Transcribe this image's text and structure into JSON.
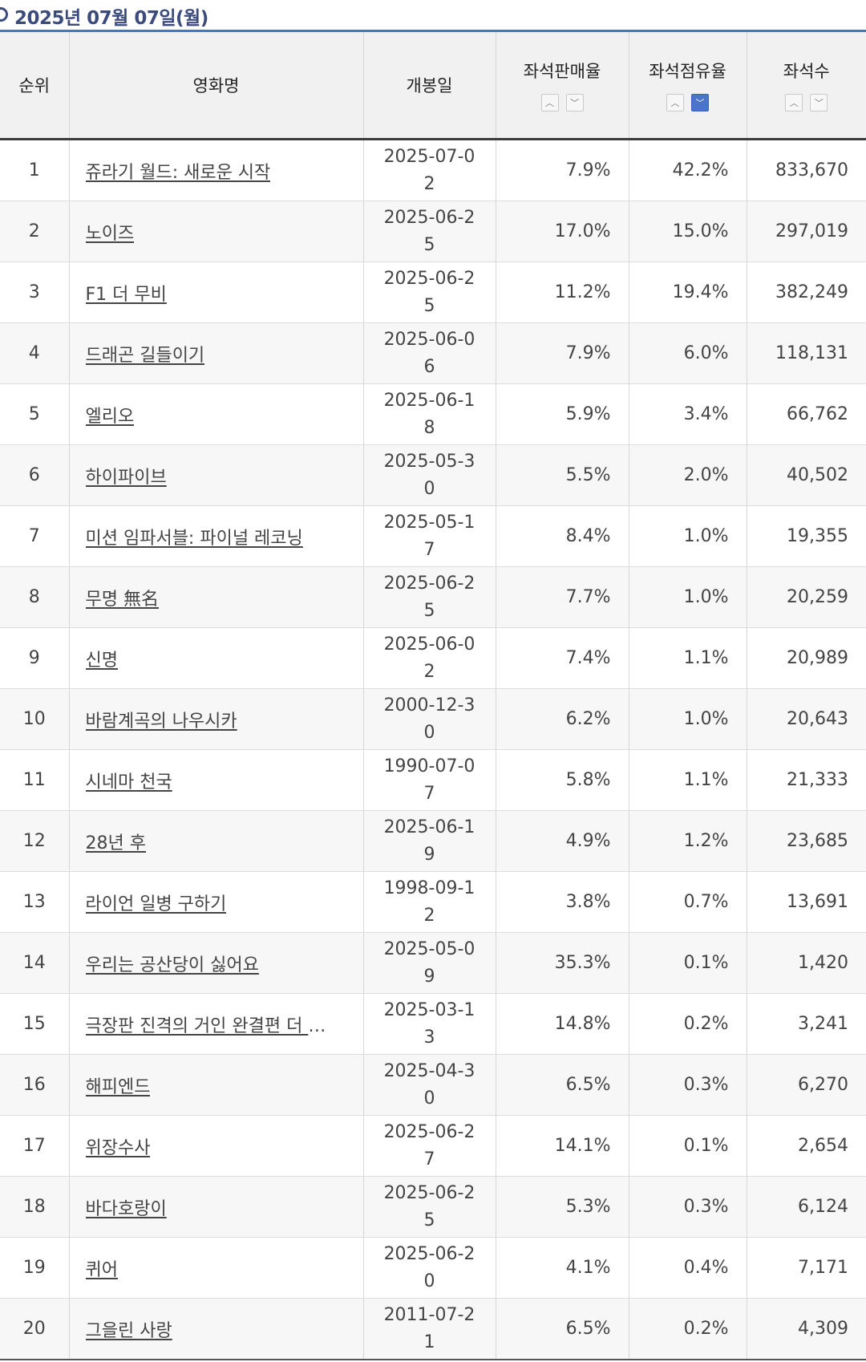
{
  "heading": {
    "date": "2025년 07월 07일(월)"
  },
  "columns": {
    "rank": "순위",
    "title": "영화명",
    "release": "개봉일",
    "sales_rate": "좌석판매율",
    "seat_share": "좌석점유율",
    "seats": "좌석수"
  },
  "sort_glyphs": {
    "up": "︿",
    "down": "﹀"
  },
  "colors": {
    "accent": "#4a74c9",
    "heading": "#3b4b7c"
  },
  "rows": [
    {
      "rank": "1",
      "title": "쥬라기 월드: 새로운 시작",
      "release": "2025-07-02",
      "sales": "7.9%",
      "share": "42.2%",
      "seats": "833,670"
    },
    {
      "rank": "2",
      "title": "노이즈",
      "release": "2025-06-25",
      "sales": "17.0%",
      "share": "15.0%",
      "seats": "297,019"
    },
    {
      "rank": "3",
      "title": "F1 더 무비",
      "release": "2025-06-25",
      "sales": "11.2%",
      "share": "19.4%",
      "seats": "382,249"
    },
    {
      "rank": "4",
      "title": "드래곤 길들이기",
      "release": "2025-06-06",
      "sales": "7.9%",
      "share": "6.0%",
      "seats": "118,131"
    },
    {
      "rank": "5",
      "title": "엘리오",
      "release": "2025-06-18",
      "sales": "5.9%",
      "share": "3.4%",
      "seats": "66,762"
    },
    {
      "rank": "6",
      "title": "하이파이브",
      "release": "2025-05-30",
      "sales": "5.5%",
      "share": "2.0%",
      "seats": "40,502"
    },
    {
      "rank": "7",
      "title": "미션 임파서블: 파이널 레코닝",
      "release": "2025-05-17",
      "sales": "8.4%",
      "share": "1.0%",
      "seats": "19,355"
    },
    {
      "rank": "8",
      "title": "무명 無名",
      "release": "2025-06-25",
      "sales": "7.7%",
      "share": "1.0%",
      "seats": "20,259"
    },
    {
      "rank": "9",
      "title": "신명",
      "release": "2025-06-02",
      "sales": "7.4%",
      "share": "1.1%",
      "seats": "20,989"
    },
    {
      "rank": "10",
      "title": "바람계곡의 나우시카",
      "release": "2000-12-30",
      "sales": "6.2%",
      "share": "1.0%",
      "seats": "20,643"
    },
    {
      "rank": "11",
      "title": "시네마 천국",
      "release": "1990-07-07",
      "sales": "5.8%",
      "share": "1.1%",
      "seats": "21,333"
    },
    {
      "rank": "12",
      "title": "28년 후",
      "release": "2025-06-19",
      "sales": "4.9%",
      "share": "1.2%",
      "seats": "23,685"
    },
    {
      "rank": "13",
      "title": "라이언 일병 구하기",
      "release": "1998-09-12",
      "sales": "3.8%",
      "share": "0.7%",
      "seats": "13,691"
    },
    {
      "rank": "14",
      "title": "우리는 공산당이 싫어요",
      "release": "2025-05-09",
      "sales": "35.3%",
      "share": "0.1%",
      "seats": "1,420"
    },
    {
      "rank": "15",
      "title": "극장판 진격의 거인 완결편 더 라스…",
      "release": "2025-03-13",
      "sales": "14.8%",
      "share": "0.2%",
      "seats": "3,241"
    },
    {
      "rank": "16",
      "title": "해피엔드",
      "release": "2025-04-30",
      "sales": "6.5%",
      "share": "0.3%",
      "seats": "6,270"
    },
    {
      "rank": "17",
      "title": "위장수사",
      "release": "2025-06-27",
      "sales": "14.1%",
      "share": "0.1%",
      "seats": "2,654"
    },
    {
      "rank": "18",
      "title": "바다호랑이",
      "release": "2025-06-25",
      "sales": "5.3%",
      "share": "0.3%",
      "seats": "6,124"
    },
    {
      "rank": "19",
      "title": "퀴어",
      "release": "2025-06-20",
      "sales": "4.1%",
      "share": "0.4%",
      "seats": "7,171"
    },
    {
      "rank": "20",
      "title": "그을린 사랑",
      "release": "2011-07-21",
      "sales": "6.5%",
      "share": "0.2%",
      "seats": "4,309"
    }
  ]
}
